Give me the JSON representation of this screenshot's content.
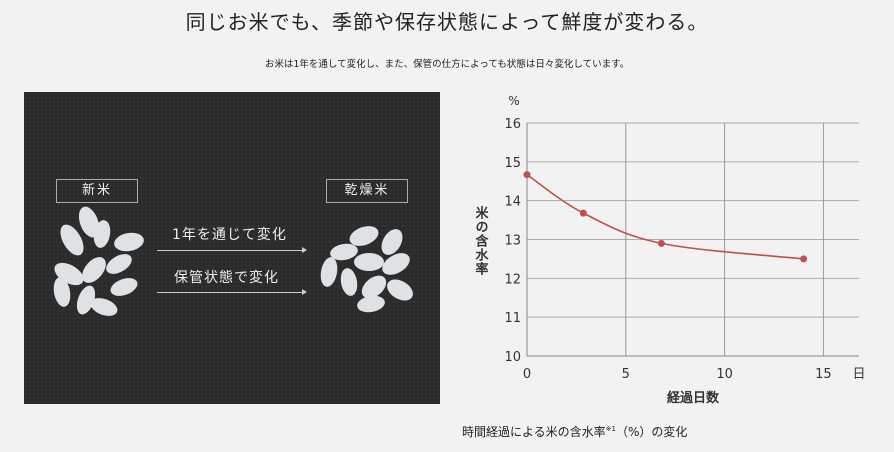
{
  "title": "同じお米でも、季節や保存状態によって鮮度が変わる。",
  "subtitle": "お米は1年を通して変化し、また、保管の仕方によっても状態は日々変化しています。",
  "photo": {
    "label_new": "新米",
    "label_dry": "乾燥米",
    "arrow1": "1年を通じて変化",
    "arrow2": "保管状態で変化"
  },
  "caption": {
    "text": "時間経過による米の含水率",
    "note": "※1",
    "suffix": "（%）の変化"
  },
  "chart_data": {
    "type": "line",
    "xlabel": "経過日数",
    "ylabel": "米の含水率",
    "x_unit": "日",
    "y_unit": "%",
    "xlim": [
      0,
      16.8
    ],
    "ylim": [
      10,
      16
    ],
    "xticks": [
      0,
      5,
      10,
      15
    ],
    "yticks": [
      10,
      11,
      12,
      13,
      14,
      15,
      16
    ],
    "grid": true,
    "color": "#c0504d",
    "x": [
      0,
      2.85,
      6.8,
      14
    ],
    "y": [
      14.67,
      13.68,
      12.9,
      12.5
    ]
  }
}
